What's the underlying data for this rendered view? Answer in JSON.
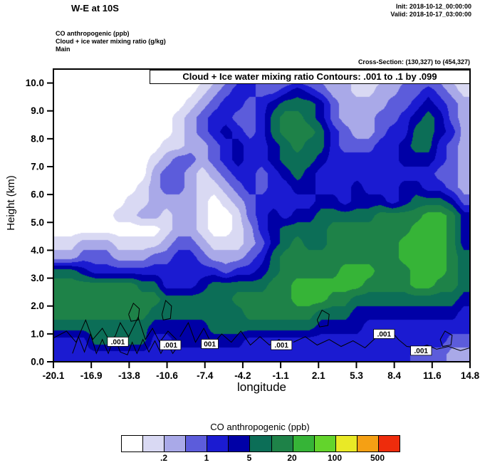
{
  "header": {
    "title": "W-E at 10S",
    "init_label": "Init: 2018-10-12_00:00:00",
    "valid_label": "Valid: 2018-10-17_03:00:00",
    "field1": "CO anthropogenic   (ppb)",
    "field2": "Cloud + ice water mixing ratio   (g/kg)",
    "field3": "Main",
    "cross_section": "Cross-Section: (130,327) to (454,327)"
  },
  "plot": {
    "annotation": "Cloud + Ice water mixing ratio Contours: .001 to .1 by .099",
    "xlabel": "longitude",
    "ylabel": "Height (km)"
  },
  "chart_data": {
    "type": "heatmap",
    "title": "W-E vertical cross-section at 10S: CO anthropogenic (ppb, filled) with cloud + ice water mixing ratio contours (g/kg)",
    "xlabel": "longitude",
    "ylabel": "Height (km)",
    "x_range": [
      -20.1,
      14.8
    ],
    "y_range": [
      0,
      10.5
    ],
    "x_ticks": [
      "-20.1",
      "-16.9",
      "-13.8",
      "-10.6",
      "-7.4",
      "-4.2",
      "-1.1",
      "2.1",
      "5.3",
      "8.4",
      "11.6",
      "14.8"
    ],
    "y_ticks": [
      "0.0",
      "1.0",
      "2.0",
      "3.0",
      "4.0",
      "5.0",
      "6.0",
      "7.0",
      "8.0",
      "9.0",
      "10.0"
    ],
    "fill_units": "ppb",
    "fill_levels_ppb": [
      0.1,
      0.2,
      0.5,
      1,
      2,
      5,
      10,
      20,
      50,
      100,
      200,
      500
    ],
    "palette": [
      "#ffffff",
      "#d9d9f3",
      "#a9a9e8",
      "#5c5cdb",
      "#1b1bd1",
      "#0000a6",
      "#0c6e57",
      "#1e8248",
      "#36b437",
      "#63d42c",
      "#e9e926",
      "#f5a014",
      "#ee2c0c"
    ],
    "rep_values_ppb": [
      0.05,
      0.15,
      0.3,
      0.7,
      1.5,
      3,
      7,
      15,
      30,
      70,
      150,
      300,
      700
    ],
    "grid_note": "Each char is a color-class index (0-12) of CO concentration; 35 columns span lon -20.1..14.8, 21 rows span 10.5..0 km top-to-bottom",
    "grid_rows_top_to_bottom": [
      "00000000000001234322222221112222211",
      "00000000000012344334543221122334321",
      "00000000000123443456665322223345432",
      "00000000001234433467765322233456532",
      "00000000001234543467776432234466542",
      "00000000011223454456766433344566432",
      "00000000123323454456665444444555432",
      "00000000233212344345654444444444332",
      "00000001233211234344554445444554432",
      "00000011222210123444445545554566653",
      "00000112212210013454556666677778875",
      "00000000012210012456666777777788875",
      "11222111123321112356766777777888875",
      "22333222334432223467777777777888876",
      "66544444444444344567777788877788876",
      "77777776644456666677888888777788776",
      "77777777766666677777888776666666665",
      "77777777666666667777776665555555554",
      "66666666555556666666665555444444444",
      "44466666445555554444444444444444433",
      "44444444444444444444444444444433322"
    ],
    "cloud_contours": {
      "units": "g/kg",
      "levels": [
        0.001,
        0.1
      ],
      "paths": [
        [
          [
            -20.1,
            0.85
          ],
          [
            -19,
            1.1
          ],
          [
            -18.2,
            0.7
          ],
          [
            -17.4,
            1.5
          ],
          [
            -16.8,
            0.8
          ],
          [
            -16,
            1.2
          ],
          [
            -15.2,
            0.6
          ],
          [
            -14.5,
            1.4
          ],
          [
            -13.8,
            0.9
          ],
          [
            -13,
            1.6
          ],
          [
            -12.4,
            0.8
          ],
          [
            -11.8,
            1.2
          ],
          [
            -11.2,
            0.7
          ],
          [
            -10.5,
            1.1
          ],
          [
            -9.8,
            0.8
          ]
        ],
        [
          [
            -9.5,
            0.9
          ],
          [
            -8.8,
            1.4
          ],
          [
            -8.2,
            0.7
          ],
          [
            -7.5,
            1.2
          ],
          [
            -6.8,
            0.6
          ],
          [
            -6,
            1.0
          ],
          [
            -5.2,
            0.7
          ],
          [
            -4.4,
            1.1
          ],
          [
            -3.6,
            0.6
          ],
          [
            -2.8,
            0.9
          ],
          [
            -2,
            0.6
          ],
          [
            -1.2,
            0.8
          ],
          [
            -0.4,
            0.55
          ]
        ],
        [
          [
            0,
            0.7
          ],
          [
            1,
            0.9
          ],
          [
            2,
            0.6
          ],
          [
            3,
            0.8
          ],
          [
            4,
            0.55
          ],
          [
            5,
            0.75
          ],
          [
            6,
            0.5
          ],
          [
            7,
            0.9
          ],
          [
            7.6,
            1.05
          ],
          [
            8.2,
            1.1
          ],
          [
            8.8,
            0.8
          ],
          [
            9.5,
            0.55
          ],
          [
            10.5,
            0.5
          ],
          [
            11.2,
            0.6
          ],
          [
            12,
            0.45
          ],
          [
            13,
            0.55
          ],
          [
            14,
            0.4
          ],
          [
            14.8,
            0.5
          ]
        ],
        [
          [
            -18.5,
            0.3
          ],
          [
            -18.0,
            0.9
          ],
          [
            -17.5,
            0.35
          ],
          [
            -17.0,
            1.0
          ],
          [
            -16.5,
            0.3
          ],
          [
            -16.0,
            0.8
          ],
          [
            -15.5,
            0.3
          ],
          [
            -15.0,
            0.9
          ],
          [
            -14.5,
            0.35
          ],
          [
            -13.9,
            0.25
          ],
          [
            -13.5,
            0.7
          ],
          [
            -13.1,
            0.3
          ],
          [
            -12.6,
            0.8
          ],
          [
            -12.1,
            0.35
          ],
          [
            -11.6,
            0.75
          ],
          [
            -11.1,
            0.3
          ],
          [
            -10.6,
            0.7
          ],
          [
            -10.1,
            0.3
          ],
          [
            -9.6,
            0.6
          ]
        ],
        [
          [
            -13.8,
            1.7
          ],
          [
            -13.4,
            2.1
          ],
          [
            -12.9,
            1.9
          ],
          [
            -13.0,
            1.5
          ],
          [
            -13.6,
            1.45
          ],
          [
            -13.8,
            1.7
          ]
        ],
        [
          [
            -11.0,
            1.7
          ],
          [
            -10.7,
            2.2
          ],
          [
            -10.2,
            2.0
          ],
          [
            -10.3,
            1.55
          ],
          [
            -10.9,
            1.5
          ],
          [
            -11.0,
            1.7
          ]
        ],
        [
          [
            2.0,
            1.5
          ],
          [
            2.4,
            1.85
          ],
          [
            3.0,
            1.7
          ],
          [
            2.9,
            1.3
          ],
          [
            2.2,
            1.25
          ],
          [
            2.0,
            1.5
          ]
        ],
        [
          [
            12.3,
            0.8
          ],
          [
            12.7,
            1.1
          ],
          [
            13.3,
            0.95
          ],
          [
            13.2,
            0.6
          ],
          [
            12.5,
            0.55
          ],
          [
            12.3,
            0.8
          ]
        ]
      ],
      "labels": [
        {
          "text": ".001",
          "lon": -14.7,
          "km": 0.72
        },
        {
          "text": ".001",
          "lon": -10.3,
          "km": 0.6
        },
        {
          "text": "001",
          "lon": -7.0,
          "km": 0.64
        },
        {
          "text": ".001",
          "lon": -1.0,
          "km": 0.6
        },
        {
          "text": ".001",
          "lon": 7.6,
          "km": 1.0
        },
        {
          "text": ".001",
          "lon": 10.7,
          "km": 0.4
        }
      ]
    },
    "colorbar": {
      "title": "CO anthropogenic  (ppb)",
      "tick_labels": [
        ".2",
        "1",
        "5",
        "20",
        "100",
        "500"
      ],
      "tick_level_indices": [
        1,
        3,
        5,
        7,
        9,
        11
      ]
    }
  }
}
